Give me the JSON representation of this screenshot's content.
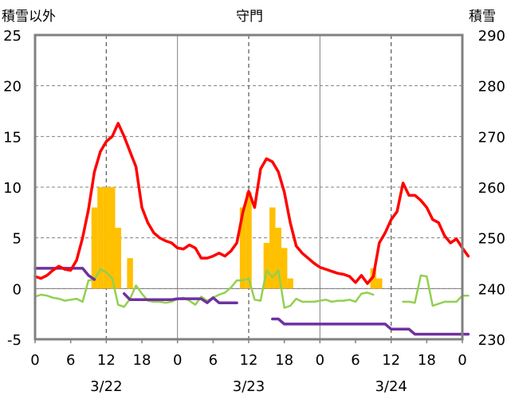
{
  "chart_data": {
    "type": "line",
    "title": "守門",
    "left_axis_title": "積雪以外",
    "right_axis_title": "積雪",
    "y_left": {
      "min": -5,
      "max": 25,
      "ticks": [
        "25",
        "20",
        "15",
        "10",
        "5",
        "0",
        "-5"
      ]
    },
    "y_right": {
      "min": 230,
      "max": 290,
      "ticks": [
        "290",
        "280",
        "270",
        "260",
        "250",
        "240",
        "230"
      ]
    },
    "x_tick_labels": [
      "0",
      "6",
      "12",
      "18",
      "0",
      "6",
      "12",
      "18",
      "0",
      "6",
      "12",
      "18",
      "0"
    ],
    "date_labels": [
      {
        "label": "3/22",
        "hour": 12
      },
      {
        "label": "3/23",
        "hour": 36
      },
      {
        "label": "3/24",
        "hour": 60
      }
    ],
    "grid": true,
    "colors": {
      "temperature": "#ff0000",
      "bars": "#ffc000",
      "green": "#92d050",
      "purple": "#7030a0",
      "grid": "#808080"
    },
    "series": [
      {
        "key": "temperature",
        "axis": "left",
        "type": "line",
        "points": [
          [
            0,
            1.2
          ],
          [
            1,
            1.0
          ],
          [
            2,
            1.3
          ],
          [
            3,
            1.8
          ],
          [
            4,
            2.2
          ],
          [
            5,
            1.9
          ],
          [
            6,
            1.8
          ],
          [
            7,
            2.8
          ],
          [
            8,
            5.0
          ],
          [
            9,
            7.8
          ],
          [
            10,
            11.5
          ],
          [
            11,
            13.5
          ],
          [
            12,
            14.5
          ],
          [
            13,
            15.0
          ],
          [
            14,
            16.3
          ],
          [
            15,
            15.0
          ],
          [
            16,
            13.5
          ],
          [
            17,
            12.0
          ],
          [
            18,
            8.0
          ],
          [
            19,
            6.5
          ],
          [
            20,
            5.5
          ],
          [
            21,
            5.0
          ],
          [
            22,
            4.7
          ],
          [
            23,
            4.5
          ],
          [
            24,
            4.0
          ],
          [
            25,
            3.9
          ],
          [
            26,
            4.3
          ],
          [
            27,
            4.0
          ],
          [
            28,
            3.0
          ],
          [
            29,
            3.0
          ],
          [
            30,
            3.2
          ],
          [
            31,
            3.5
          ],
          [
            32,
            3.2
          ],
          [
            33,
            3.7
          ],
          [
            34,
            4.5
          ],
          [
            35,
            7.5
          ],
          [
            36,
            9.6
          ],
          [
            37,
            8.0
          ],
          [
            38,
            11.8
          ],
          [
            39,
            12.8
          ],
          [
            40,
            12.5
          ],
          [
            41,
            11.5
          ],
          [
            42,
            9.5
          ],
          [
            43,
            6.5
          ],
          [
            44,
            4.2
          ],
          [
            45,
            3.5
          ],
          [
            46,
            3.0
          ],
          [
            47,
            2.5
          ],
          [
            48,
            2.1
          ],
          [
            49,
            1.9
          ],
          [
            50,
            1.7
          ],
          [
            51,
            1.5
          ],
          [
            52,
            1.4
          ],
          [
            53,
            1.2
          ],
          [
            54,
            0.6
          ],
          [
            55,
            1.3
          ],
          [
            56,
            0.5
          ],
          [
            57,
            1.2
          ],
          [
            58,
            4.5
          ],
          [
            59,
            5.5
          ],
          [
            60,
            6.8
          ],
          [
            61,
            7.6
          ],
          [
            62,
            10.4
          ],
          [
            63,
            9.2
          ],
          [
            64,
            9.2
          ],
          [
            65,
            8.7
          ],
          [
            66,
            8.0
          ],
          [
            67,
            6.8
          ],
          [
            68,
            6.5
          ],
          [
            69,
            5.2
          ],
          [
            70,
            4.5
          ],
          [
            71,
            4.9
          ],
          [
            72,
            4.0
          ],
          [
            73,
            3.2
          ]
        ]
      },
      {
        "key": "green",
        "axis": "left",
        "type": "line",
        "points": [
          [
            0,
            -0.8
          ],
          [
            1,
            -0.6
          ],
          [
            2,
            -0.7
          ],
          [
            3,
            -0.9
          ],
          [
            4,
            -1.0
          ],
          [
            5,
            -1.2
          ],
          [
            6,
            -1.1
          ],
          [
            7,
            -1.0
          ],
          [
            8,
            -1.3
          ],
          [
            9,
            0.8
          ],
          [
            10,
            0.9
          ],
          [
            11,
            1.9
          ],
          [
            12,
            1.6
          ],
          [
            13,
            1.0
          ],
          [
            14,
            -1.6
          ],
          [
            15,
            -1.8
          ],
          [
            16,
            -1.0
          ],
          [
            17,
            0.3
          ],
          [
            18,
            -0.5
          ],
          [
            19,
            -1.2
          ],
          [
            20,
            -1.3
          ],
          [
            21,
            -1.3
          ],
          [
            22,
            -1.4
          ],
          [
            23,
            -1.3
          ],
          [
            24,
            -1.0
          ],
          [
            25,
            -0.9
          ],
          [
            26,
            -1.2
          ],
          [
            27,
            -1.6
          ],
          [
            28,
            -0.8
          ],
          [
            29,
            -1.2
          ],
          [
            30,
            -0.9
          ],
          [
            31,
            -0.6
          ],
          [
            32,
            -0.4
          ],
          [
            33,
            0.1
          ],
          [
            34,
            0.8
          ],
          [
            35,
            0.8
          ],
          [
            36,
            1.0
          ],
          [
            37,
            -1.1
          ],
          [
            38,
            -1.2
          ],
          [
            39,
            1.8
          ],
          [
            40,
            1.1
          ],
          [
            41,
            1.8
          ],
          [
            42,
            -1.9
          ],
          [
            43,
            -1.7
          ],
          [
            44,
            -1.0
          ],
          [
            45,
            -1.3
          ],
          [
            46,
            -1.3
          ],
          [
            47,
            -1.3
          ],
          [
            48,
            -1.2
          ],
          [
            49,
            -1.1
          ],
          [
            50,
            -1.3
          ],
          [
            51,
            -1.2
          ],
          [
            52,
            -1.2
          ],
          [
            53,
            -1.1
          ],
          [
            54,
            -1.3
          ],
          [
            55,
            -0.5
          ],
          [
            56,
            -0.4
          ],
          [
            57,
            -0.6
          ],
          [
            null,
            null
          ],
          [
            62,
            -1.3
          ],
          [
            63,
            -1.3
          ],
          [
            64,
            -1.4
          ],
          [
            65,
            1.3
          ],
          [
            66,
            1.2
          ],
          [
            67,
            -1.7
          ],
          [
            68,
            -1.5
          ],
          [
            69,
            -1.3
          ],
          [
            70,
            -1.3
          ],
          [
            71,
            -1.3
          ],
          [
            72,
            -0.7
          ],
          [
            73,
            -0.7
          ]
        ]
      },
      {
        "key": "purple",
        "axis": "left",
        "type": "line",
        "points": [
          [
            0,
            2.0
          ],
          [
            8,
            2.0
          ],
          [
            9,
            1.3
          ],
          [
            10,
            0.9
          ],
          [
            null,
            null
          ],
          [
            15,
            -0.5
          ],
          [
            16,
            -1.1
          ],
          [
            23,
            -1.1
          ],
          [
            24,
            -1.0
          ],
          [
            28,
            -1.0
          ],
          [
            29,
            -1.4
          ],
          [
            30,
            -0.9
          ],
          [
            31,
            -1.4
          ],
          [
            34,
            -1.4
          ],
          [
            null,
            null
          ],
          [
            40,
            -3.0
          ],
          [
            41,
            -3.0
          ],
          [
            42,
            -3.5
          ],
          [
            59,
            -3.5
          ],
          [
            60,
            -4.0
          ],
          [
            63,
            -4.0
          ],
          [
            64,
            -4.5
          ],
          [
            73,
            -4.5
          ]
        ]
      },
      {
        "key": "bars",
        "axis": "left",
        "type": "bar",
        "points": [
          [
            10,
            8.0
          ],
          [
            11,
            10.0
          ],
          [
            12,
            10.0
          ],
          [
            13,
            10.0
          ],
          [
            14,
            6.0
          ],
          [
            16,
            3.0
          ],
          [
            35,
            8.0
          ],
          [
            36,
            9.5
          ],
          [
            39,
            4.5
          ],
          [
            40,
            8.0
          ],
          [
            41,
            6.0
          ],
          [
            42,
            4.0
          ],
          [
            43,
            1.0
          ],
          [
            57,
            2.0
          ],
          [
            58,
            1.0
          ]
        ]
      }
    ]
  }
}
